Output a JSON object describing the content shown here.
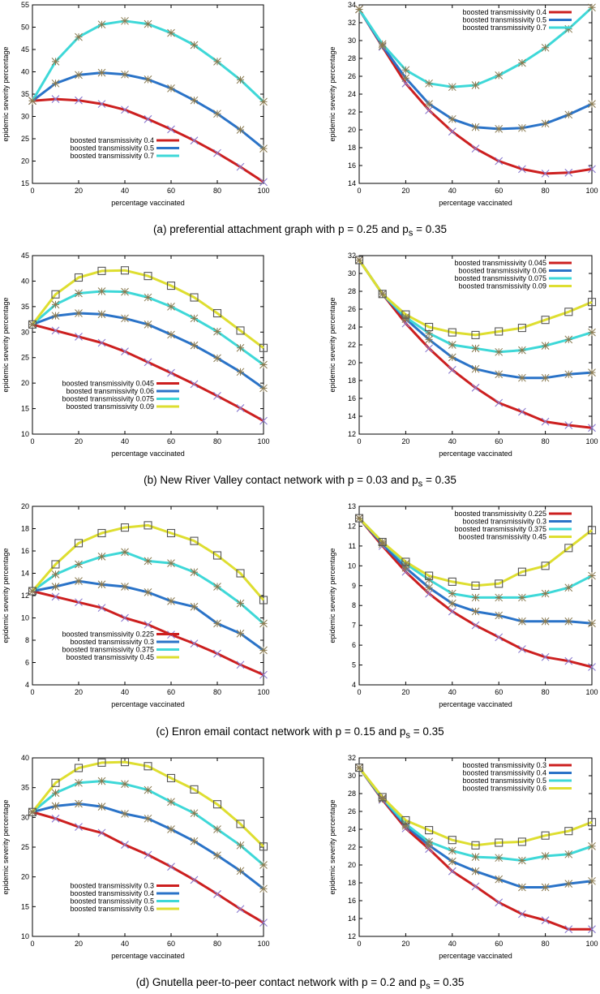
{
  "colors": {
    "s1": "#cc1f1f",
    "s2": "#2a73c8",
    "s3": "#3ed8d8",
    "s4": "#dede30",
    "marker_x": "#8a7bd0",
    "marker_star": "#8a7a50",
    "marker_sq": "#555555"
  },
  "captions": [
    "(a) preferential attachment graph with p = 0.25 and p",
    "(b) New River Valley contact network with p = 0.03 and p",
    "(c) Enron email contact network with p = 0.15 and p",
    "(d) Gnutella peer-to-peer contact network with p = 0.2 and p"
  ],
  "caption_sub": "s",
  "caption_tail": " = 0.35",
  "chart_data": [
    {
      "type": "line",
      "xlabel": "percentage vaccinated",
      "ylabel": "epidemic severity percentage",
      "xlim": [
        0,
        100
      ],
      "ylim": [
        15,
        55
      ],
      "xticks": [
        0,
        20,
        40,
        60,
        80,
        100
      ],
      "yticks": [
        15,
        20,
        25,
        30,
        35,
        40,
        45,
        50,
        55
      ],
      "legend_position": "bottom-left",
      "x": [
        0,
        10,
        20,
        30,
        40,
        50,
        60,
        70,
        80,
        90,
        100
      ],
      "series": [
        {
          "name": "boosted transmissivity 0.4",
          "color": "s1",
          "values": [
            33.5,
            33.9,
            33.6,
            32.8,
            31.5,
            29.4,
            27.1,
            24.6,
            21.8,
            18.7,
            15.3
          ]
        },
        {
          "name": "boosted transmissivity 0.5",
          "color": "s2",
          "values": [
            33.5,
            37.4,
            39.3,
            39.8,
            39.4,
            38.3,
            36.3,
            33.6,
            30.6,
            27.0,
            22.8
          ]
        },
        {
          "name": "boosted transmissivity 0.7",
          "color": "s3",
          "values": [
            33.5,
            42.3,
            47.8,
            50.6,
            51.4,
            50.7,
            48.7,
            46.0,
            42.3,
            38.2,
            33.3
          ]
        }
      ]
    },
    {
      "type": "line",
      "xlabel": "percentage vaccinated",
      "ylabel": "epidemic severity percentage",
      "xlim": [
        0,
        100
      ],
      "ylim": [
        14,
        34
      ],
      "xticks": [
        0,
        20,
        40,
        60,
        80,
        100
      ],
      "yticks": [
        14,
        16,
        18,
        20,
        22,
        24,
        26,
        28,
        30,
        32,
        34
      ],
      "legend_position": "top-right",
      "x": [
        0,
        10,
        20,
        30,
        40,
        50,
        60,
        70,
        80,
        90,
        100
      ],
      "series": [
        {
          "name": "boosted transmissivity 0.4",
          "color": "s1",
          "values": [
            33.5,
            29.3,
            25.2,
            22.2,
            19.8,
            17.9,
            16.5,
            15.6,
            15.1,
            15.2,
            15.6
          ]
        },
        {
          "name": "boosted transmissivity 0.5",
          "color": "s2",
          "values": [
            33.5,
            29.4,
            25.8,
            22.9,
            21.2,
            20.3,
            20.1,
            20.2,
            20.7,
            21.7,
            22.9
          ]
        },
        {
          "name": "boosted transmissivity 0.7",
          "color": "s3",
          "values": [
            33.5,
            29.6,
            26.7,
            25.2,
            24.8,
            25.0,
            26.1,
            27.5,
            29.2,
            31.3,
            33.7
          ]
        }
      ]
    },
    {
      "type": "line",
      "xlabel": "percentage vaccinated",
      "ylabel": "epidemic severity percentage",
      "xlim": [
        0,
        100
      ],
      "ylim": [
        10,
        45
      ],
      "xticks": [
        0,
        20,
        40,
        60,
        80,
        100
      ],
      "yticks": [
        10,
        15,
        20,
        25,
        30,
        35,
        40,
        45
      ],
      "legend_position": "bottom-left",
      "x": [
        0,
        10,
        20,
        30,
        40,
        50,
        60,
        70,
        80,
        90,
        100
      ],
      "series": [
        {
          "name": "boosted transmissivity 0.045",
          "color": "s1",
          "values": [
            31.5,
            30.3,
            29.1,
            27.9,
            26.2,
            24.1,
            22.0,
            19.8,
            17.5,
            15.1,
            12.6
          ]
        },
        {
          "name": "boosted transmissivity 0.06",
          "color": "s2",
          "values": [
            31.5,
            33.2,
            33.7,
            33.5,
            32.7,
            31.5,
            29.5,
            27.4,
            24.9,
            22.2,
            19.0
          ]
        },
        {
          "name": "boosted transmissivity 0.075",
          "color": "s3",
          "values": [
            31.5,
            35.4,
            37.6,
            38.0,
            37.9,
            36.8,
            35.0,
            32.7,
            30.1,
            26.9,
            23.6
          ]
        },
        {
          "name": "boosted transmissivity 0.09",
          "color": "s4",
          "values": [
            31.5,
            37.4,
            40.7,
            42.0,
            42.1,
            41.0,
            39.1,
            36.8,
            33.7,
            30.3,
            26.9
          ]
        }
      ]
    },
    {
      "type": "line",
      "xlabel": "percentage vaccinated",
      "ylabel": "epidemic severity percentage",
      "xlim": [
        0,
        100
      ],
      "ylim": [
        12,
        32
      ],
      "xticks": [
        0,
        20,
        40,
        60,
        80,
        100
      ],
      "yticks": [
        12,
        14,
        16,
        18,
        20,
        22,
        24,
        26,
        28,
        30,
        32
      ],
      "legend_position": "top-right",
      "x": [
        0,
        10,
        20,
        30,
        40,
        50,
        60,
        70,
        80,
        90,
        100
      ],
      "series": [
        {
          "name": "boosted transmissivity 0.045",
          "color": "s1",
          "values": [
            31.5,
            27.7,
            24.4,
            21.6,
            19.2,
            17.2,
            15.5,
            14.5,
            13.4,
            13.0,
            12.7
          ]
        },
        {
          "name": "boosted transmissivity 0.06",
          "color": "s2",
          "values": [
            31.5,
            27.7,
            24.9,
            22.6,
            20.6,
            19.3,
            18.7,
            18.3,
            18.3,
            18.7,
            18.9
          ]
        },
        {
          "name": "boosted transmissivity 0.075",
          "color": "s3",
          "values": [
            31.5,
            27.7,
            25.1,
            23.3,
            22.0,
            21.6,
            21.2,
            21.4,
            21.9,
            22.6,
            23.4
          ]
        },
        {
          "name": "boosted transmissivity 0.09",
          "color": "s4",
          "values": [
            31.5,
            27.7,
            25.4,
            24.0,
            23.4,
            23.1,
            23.5,
            23.9,
            24.8,
            25.7,
            26.8
          ]
        }
      ]
    },
    {
      "type": "line",
      "xlabel": "percentage vaccinated",
      "ylabel": "epidemic severity percentage",
      "xlim": [
        0,
        100
      ],
      "ylim": [
        4,
        20
      ],
      "xticks": [
        0,
        20,
        40,
        60,
        80,
        100
      ],
      "yticks": [
        4,
        6,
        8,
        10,
        12,
        14,
        16,
        18,
        20
      ],
      "legend_position": "bottom-left",
      "x": [
        0,
        10,
        20,
        30,
        40,
        50,
        60,
        70,
        80,
        90,
        100
      ],
      "series": [
        {
          "name": "boosted transmissivity 0.225",
          "color": "s1",
          "values": [
            12.4,
            11.9,
            11.4,
            10.9,
            10.0,
            9.4,
            8.5,
            7.7,
            6.8,
            5.8,
            4.9
          ]
        },
        {
          "name": "boosted transmissivity 0.3",
          "color": "s2",
          "values": [
            12.4,
            12.8,
            13.3,
            13.0,
            12.8,
            12.3,
            11.5,
            11.0,
            9.5,
            8.6,
            7.1
          ]
        },
        {
          "name": "boosted transmissivity 0.375",
          "color": "s3",
          "values": [
            12.4,
            13.9,
            14.8,
            15.5,
            15.9,
            15.1,
            14.9,
            14.1,
            12.8,
            11.3,
            9.5
          ]
        },
        {
          "name": "boosted transmissivity 0.45",
          "color": "s4",
          "values": [
            12.4,
            14.8,
            16.7,
            17.6,
            18.1,
            18.3,
            17.6,
            16.9,
            15.6,
            14.0,
            11.6
          ]
        }
      ]
    },
    {
      "type": "line",
      "xlabel": "percentage vaccinated",
      "ylabel": "epidemic severity percentage",
      "xlim": [
        0,
        100
      ],
      "ylim": [
        4,
        13
      ],
      "xticks": [
        0,
        20,
        40,
        60,
        80,
        100
      ],
      "yticks": [
        4,
        5,
        6,
        7,
        8,
        9,
        10,
        11,
        12,
        13
      ],
      "legend_position": "top-right",
      "x": [
        0,
        10,
        20,
        30,
        40,
        50,
        60,
        70,
        80,
        90,
        100
      ],
      "series": [
        {
          "name": "boosted transmissivity 0.225",
          "color": "s1",
          "values": [
            12.4,
            11.0,
            9.7,
            8.6,
            7.7,
            7.0,
            6.4,
            5.8,
            5.4,
            5.2,
            4.9
          ]
        },
        {
          "name": "boosted transmissivity 0.3",
          "color": "s2",
          "values": [
            12.4,
            11.1,
            9.9,
            8.9,
            8.1,
            7.7,
            7.5,
            7.2,
            7.2,
            7.2,
            7.1
          ]
        },
        {
          "name": "boosted transmissivity 0.375",
          "color": "s3",
          "values": [
            12.4,
            11.2,
            10.1,
            9.3,
            8.6,
            8.4,
            8.4,
            8.4,
            8.6,
            8.9,
            9.5
          ]
        },
        {
          "name": "boosted transmissivity 0.45",
          "color": "s4",
          "values": [
            12.4,
            11.2,
            10.2,
            9.5,
            9.2,
            9.0,
            9.1,
            9.7,
            10.0,
            10.9,
            11.8
          ]
        }
      ]
    },
    {
      "type": "line",
      "xlabel": "percentage vaccinated",
      "ylabel": "epidemic severity percentage",
      "xlim": [
        0,
        100
      ],
      "ylim": [
        10,
        40
      ],
      "xticks": [
        0,
        20,
        40,
        60,
        80,
        100
      ],
      "yticks": [
        10,
        15,
        20,
        25,
        30,
        35,
        40
      ],
      "legend_position": "bottom-left",
      "x": [
        0,
        10,
        20,
        30,
        40,
        50,
        60,
        70,
        80,
        90,
        100
      ],
      "series": [
        {
          "name": "boosted transmissivity 0.3",
          "color": "s1",
          "values": [
            30.9,
            29.8,
            28.4,
            27.4,
            25.4,
            23.7,
            21.7,
            19.5,
            17.1,
            14.6,
            12.3
          ]
        },
        {
          "name": "boosted transmissivity 0.4",
          "color": "s2",
          "values": [
            30.9,
            31.9,
            32.3,
            31.8,
            30.6,
            29.8,
            28.0,
            26.0,
            23.6,
            21.0,
            18.0
          ]
        },
        {
          "name": "boosted transmissivity 0.5",
          "color": "s3",
          "values": [
            30.9,
            34.1,
            35.8,
            36.1,
            35.6,
            34.6,
            32.6,
            30.7,
            28.0,
            25.3,
            22.0
          ]
        },
        {
          "name": "boosted transmissivity 0.6",
          "color": "s4",
          "values": [
            30.9,
            35.8,
            38.3,
            39.2,
            39.3,
            38.6,
            36.6,
            34.7,
            32.2,
            28.9,
            25.1
          ]
        }
      ]
    },
    {
      "type": "line",
      "xlabel": "percentage vaccinated",
      "ylabel": "epidemic severity percentage",
      "xlim": [
        0,
        100
      ],
      "ylim": [
        12,
        32
      ],
      "xticks": [
        0,
        20,
        40,
        60,
        80,
        100
      ],
      "yticks": [
        12,
        14,
        16,
        18,
        20,
        22,
        24,
        26,
        28,
        30,
        32
      ],
      "legend_position": "top-right",
      "x": [
        0,
        10,
        20,
        30,
        40,
        50,
        60,
        70,
        80,
        90,
        100
      ],
      "series": [
        {
          "name": "boosted transmissivity 0.3",
          "color": "s1",
          "values": [
            30.9,
            27.3,
            24.1,
            21.8,
            19.3,
            17.6,
            15.8,
            14.5,
            13.8,
            12.8,
            12.8
          ]
        },
        {
          "name": "boosted transmissivity 0.4",
          "color": "s2",
          "values": [
            30.9,
            27.4,
            24.4,
            22.2,
            20.4,
            19.3,
            18.4,
            17.5,
            17.5,
            17.9,
            18.2
          ]
        },
        {
          "name": "boosted transmissivity 0.5",
          "color": "s3",
          "values": [
            30.9,
            27.5,
            24.6,
            22.6,
            21.6,
            20.9,
            20.8,
            20.5,
            21.0,
            21.2,
            22.1
          ]
        },
        {
          "name": "boosted transmissivity 0.6",
          "color": "s4",
          "values": [
            30.9,
            27.6,
            25.0,
            23.9,
            22.8,
            22.2,
            22.5,
            22.6,
            23.3,
            23.8,
            24.8
          ]
        }
      ]
    }
  ]
}
